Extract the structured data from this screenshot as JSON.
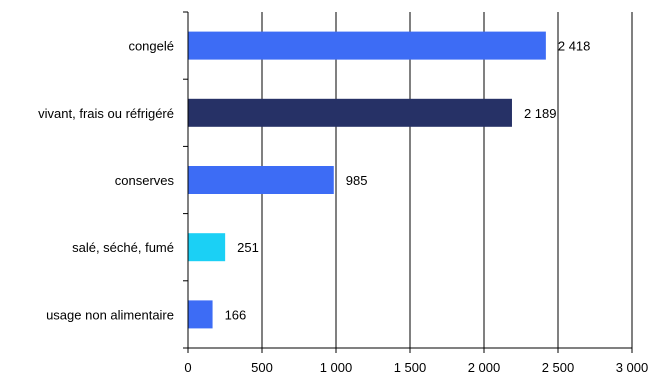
{
  "chart_data": {
    "type": "bar",
    "orientation": "horizontal",
    "categories": [
      "congelé",
      "vivant, frais ou réfrigéré",
      "conserves",
      "salé, séché, fumé",
      "usage non alimentaire"
    ],
    "values": [
      2418,
      2189,
      985,
      251,
      166
    ],
    "value_labels": [
      "2 418",
      "2 189",
      "985",
      "251",
      "166"
    ],
    "bar_colors": [
      "#3d6cf5",
      "#263166",
      "#3d6cf5",
      "#1bd0f5",
      "#3d6cf5"
    ],
    "xlim": [
      0,
      3000
    ],
    "xticks": [
      0,
      500,
      1000,
      1500,
      2000,
      2500,
      3000
    ],
    "xtick_labels": [
      "0",
      "500",
      "1 000",
      "1 500",
      "2 000",
      "2 500",
      "3 000"
    ],
    "grid": "vertical",
    "title": "",
    "xlabel": "",
    "ylabel": ""
  }
}
